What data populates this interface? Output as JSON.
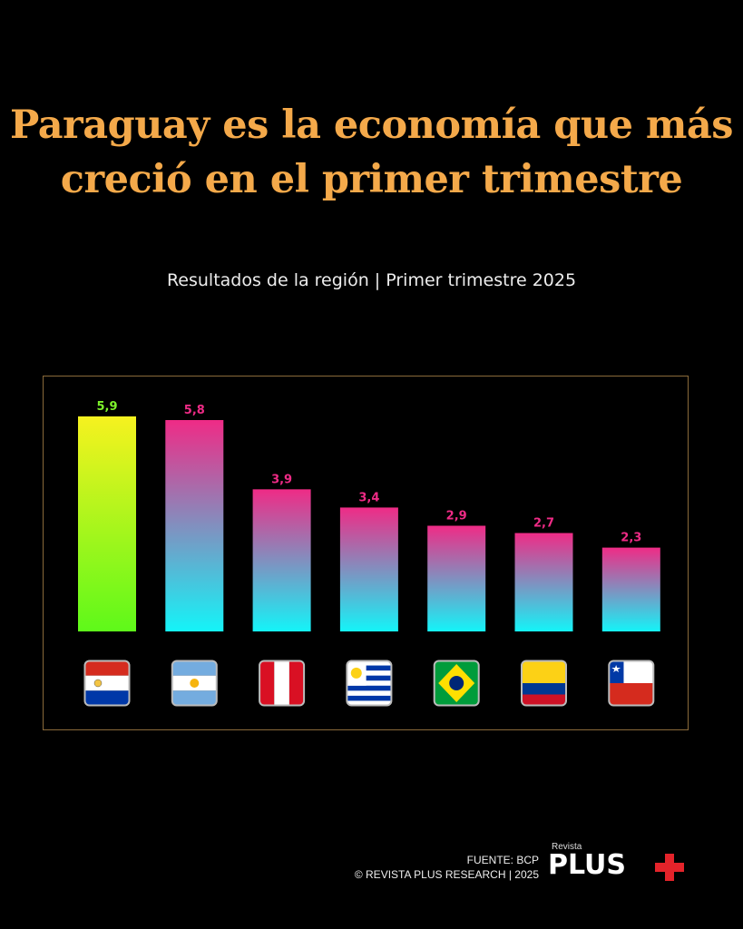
{
  "title_line1": "Paraguay es la economía que más",
  "title_line2": "creció en el primer trimestre",
  "subtitle": "Resultados de la región | Primer trimestre 2025",
  "colors": {
    "title": "#f4a94a",
    "highlight_top": "#f6f21f",
    "highlight_bottom": "#5ef91a",
    "bar_top": "#ef2b86",
    "bar_bottom": "#14f4f8",
    "label_highlight": "#7df22b",
    "label_default": "#ef2b86"
  },
  "chart_data": {
    "type": "bar",
    "categories": [
      "Paraguay",
      "Argentina",
      "Perú",
      "Uruguay",
      "Brasil",
      "Colombia",
      "Chile"
    ],
    "category_icons": [
      "flag-paraguay",
      "flag-argentina",
      "flag-peru",
      "flag-uruguay",
      "flag-brazil",
      "flag-colombia",
      "flag-chile"
    ],
    "values": [
      5.9,
      5.8,
      3.9,
      3.4,
      2.9,
      2.7,
      2.3
    ],
    "data_labels": [
      "5,9",
      "5,8",
      "3,9",
      "3,4",
      "2,9",
      "2,7",
      "2,3"
    ],
    "highlight_index": 0,
    "ylim": [
      0,
      5.9
    ],
    "grid": false,
    "legend": "none"
  },
  "footer": {
    "source": "FUENTE: BCP",
    "copyright": "© REVISTA PLUS RESEARCH | 2025",
    "brand_small": "Revista",
    "brand_big": "PLUS"
  }
}
